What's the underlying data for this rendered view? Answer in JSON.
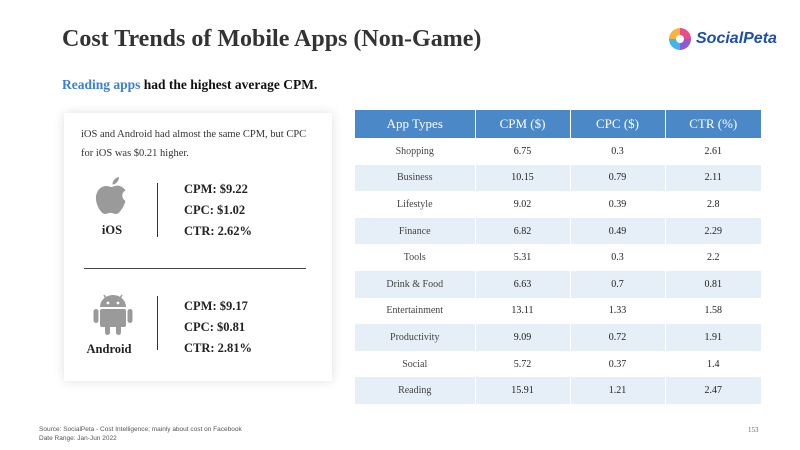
{
  "header": {
    "title": "Cost Trends of Mobile Apps (Non-Game)",
    "logo_text": "SocialPeta"
  },
  "subtitle": {
    "highlight": "Reading apps",
    "rest": " had the highest average CPM."
  },
  "card": {
    "note": "iOS and Android had almost the same CPM, but CPC for iOS was $0.21 higher.",
    "ios": {
      "label": "iOS",
      "icon": "apple-icon",
      "cpm": "CPM: $9.22",
      "cpc": "CPC: $1.02",
      "ctr": "CTR: 2.62%"
    },
    "android": {
      "label": "Android",
      "icon": "android-icon",
      "cpm": "CPM: $9.17",
      "cpc": "CPC: $0.81",
      "ctr": "CTR: 2.81%"
    }
  },
  "table": {
    "headers": [
      "App Types",
      "CPM ($)",
      "CPC ($)",
      "CTR (%)"
    ],
    "rows": [
      [
        "Shopping",
        "6.75",
        "0.3",
        "2.61"
      ],
      [
        "Business",
        "10.15",
        "0.79",
        "2.11"
      ],
      [
        "Lifestyle",
        "9.02",
        "0.39",
        "2.8"
      ],
      [
        "Finance",
        "6.82",
        "0.49",
        "2.29"
      ],
      [
        "Tools",
        "5.31",
        "0.3",
        "2.2"
      ],
      [
        "Drink & Food",
        "6.63",
        "0.7",
        "0.81"
      ],
      [
        "Entertainment",
        "13.11",
        "1.33",
        "1.58"
      ],
      [
        "Productivity",
        "9.09",
        "0.72",
        "1.91"
      ],
      [
        "Social",
        "5.72",
        "0.37",
        "1.4"
      ],
      [
        "Reading",
        "15.91",
        "1.21",
        "2.47"
      ]
    ]
  },
  "footer": {
    "source": "Source: SocialPeta - Cost Intelligence; mainly about cost on Facebook",
    "date_range": "Date Range: Jan-Jun 2022",
    "page_number": "153"
  },
  "colors": {
    "table_header": "#4a88c8",
    "table_stripe": "#e6eef8",
    "highlight_text": "#3b7fd1",
    "logo_text": "#1d4fa8"
  }
}
